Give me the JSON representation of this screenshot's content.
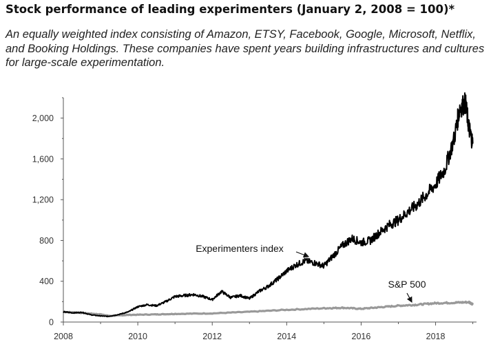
{
  "header": {
    "title": "Stock performance of leading experimenters (January 2, 2008 = 100)*",
    "subtitle": "An equally weighted index consisting of Amazon, ETSY, Facebook, Google, Microsoft, Netflix, and Booking Holdings. These companies have spent years building infrastructures and cultures for large-scale experimentation."
  },
  "chart_data": {
    "type": "line",
    "title": "Stock performance of leading experimenters (January 2, 2008 = 100)*",
    "xlabel": "",
    "ylabel": "",
    "xlim": [
      2008,
      2019.1
    ],
    "ylim": [
      0,
      2200
    ],
    "x_ticks": [
      2008,
      2010,
      2012,
      2014,
      2016,
      2018
    ],
    "x_tick_labels": [
      "2008",
      "2010",
      "2012",
      "2014",
      "2016",
      "2018"
    ],
    "y_ticks": [
      0,
      400,
      800,
      1200,
      1600,
      2000
    ],
    "y_tick_labels": [
      "0",
      "400",
      "800",
      "1,200",
      "1,600",
      "2,000"
    ],
    "grid": false,
    "legend": "none (direct labels)",
    "series": [
      {
        "name": "Experimenters index",
        "color": "#000000",
        "x": [
          2008.0,
          2008.25,
          2008.5,
          2008.75,
          2009.0,
          2009.2,
          2009.5,
          2009.75,
          2010.0,
          2010.25,
          2010.5,
          2010.75,
          2011.0,
          2011.25,
          2011.5,
          2011.75,
          2012.0,
          2012.25,
          2012.5,
          2012.75,
          2013.0,
          2013.25,
          2013.5,
          2013.75,
          2014.0,
          2014.25,
          2014.5,
          2014.75,
          2015.0,
          2015.25,
          2015.5,
          2015.75,
          2016.0,
          2016.25,
          2016.5,
          2016.75,
          2017.0,
          2017.25,
          2017.5,
          2017.75,
          2018.0,
          2018.25,
          2018.5,
          2018.65,
          2018.8,
          2018.9,
          2019.0
        ],
        "values": [
          100,
          90,
          95,
          70,
          60,
          55,
          75,
          100,
          150,
          170,
          160,
          200,
          250,
          260,
          270,
          250,
          220,
          300,
          240,
          260,
          230,
          300,
          350,
          420,
          500,
          560,
          600,
          580,
          550,
          650,
          750,
          820,
          780,
          800,
          880,
          950,
          1000,
          1080,
          1150,
          1250,
          1350,
          1500,
          1800,
          2100,
          2150,
          1900,
          1750
        ]
      },
      {
        "name": "S&P 500",
        "color": "#999999",
        "x": [
          2008.0,
          2008.5,
          2009.0,
          2009.25,
          2009.75,
          2010.5,
          2011.0,
          2012.0,
          2013.0,
          2014.0,
          2015.0,
          2015.5,
          2016.0,
          2016.5,
          2017.0,
          2017.5,
          2018.0,
          2018.5,
          2018.9,
          2019.0
        ],
        "values": [
          100,
          90,
          75,
          60,
          70,
          75,
          80,
          85,
          100,
          120,
          135,
          140,
          130,
          145,
          160,
          170,
          185,
          190,
          195,
          175
        ]
      }
    ],
    "annotations": [
      {
        "text": "Experimenters index",
        "points_to": "Experimenters index"
      },
      {
        "text": "S&P 500",
        "points_to": "S&P 500"
      }
    ]
  }
}
